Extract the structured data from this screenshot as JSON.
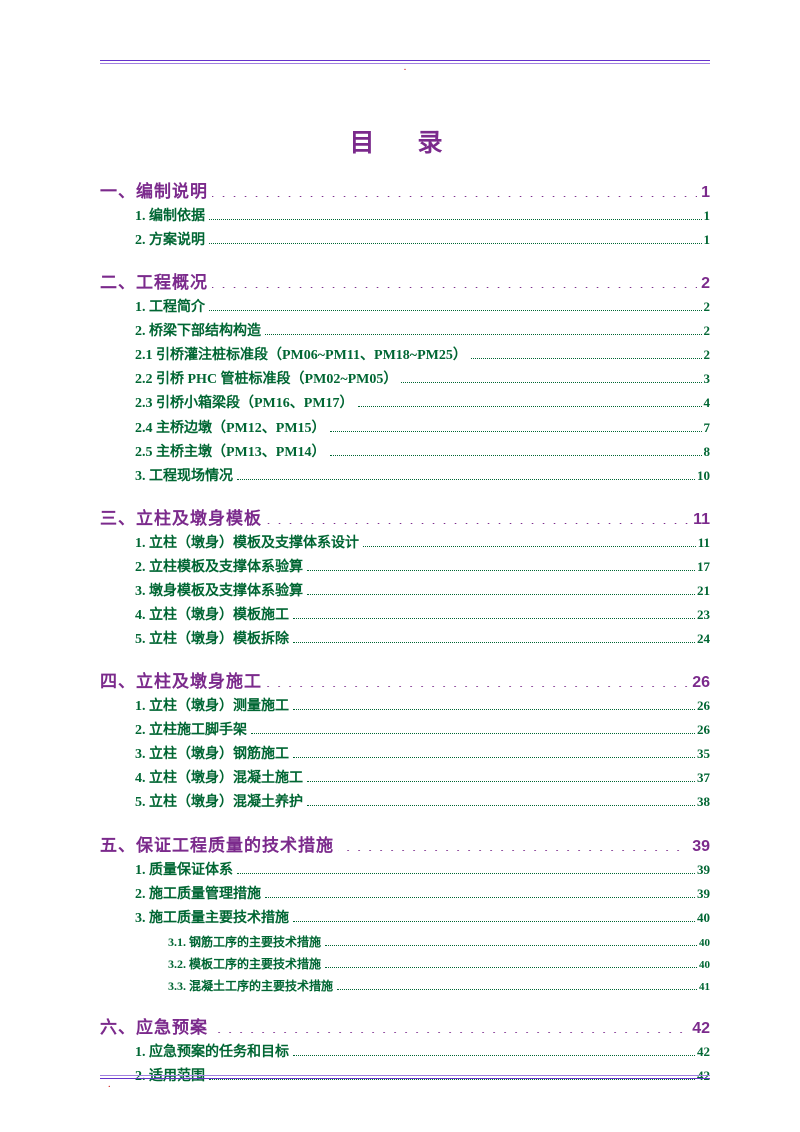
{
  "colors": {
    "title": "#7b2a8c",
    "level1": "#7b2a8c",
    "level2": "#006633",
    "level3": "#006633",
    "rule": "#6633cc",
    "marker": "#c00",
    "background": "#ffffff"
  },
  "typography": {
    "title_fontsize": 25,
    "l1_fontsize": 17,
    "l2_fontsize": 14,
    "l3_fontsize": 12
  },
  "title": "目  录",
  "header_marker": ".",
  "footer_marker": ".",
  "toc": [
    {
      "level": 1,
      "label": "一、编制说明",
      "page": "1"
    },
    {
      "level": 2,
      "label": "1.  编制依据",
      "page": "1"
    },
    {
      "level": 2,
      "label": "2.  方案说明",
      "page": "1"
    },
    {
      "level": 1,
      "label": "二、工程概况",
      "page": "2"
    },
    {
      "level": 2,
      "label": "1.  工程简介",
      "page": "2"
    },
    {
      "level": 2,
      "label": "2.  桥梁下部结构构造",
      "page": "2"
    },
    {
      "level": 2,
      "label": "2.1 引桥灌注桩标准段（PM06~PM11、PM18~PM25）",
      "page": "2"
    },
    {
      "level": 2,
      "label": "2.2 引桥 PHC 管桩标准段（PM02~PM05）",
      "page": "3"
    },
    {
      "level": 2,
      "label": "2.3 引桥小箱梁段（PM16、PM17）",
      "page": "4"
    },
    {
      "level": 2,
      "label": "2.4 主桥边墩（PM12、PM15）",
      "page": "7"
    },
    {
      "level": 2,
      "label": "2.5 主桥主墩（PM13、PM14）",
      "page": "8"
    },
    {
      "level": 2,
      "label": "3.  工程现场情况",
      "page": "10"
    },
    {
      "level": 1,
      "label": "三、立柱及墩身模板",
      "page": "11"
    },
    {
      "level": 2,
      "label": "1.  立柱（墩身）模板及支撑体系设计",
      "page": "11"
    },
    {
      "level": 2,
      "label": "2.  立柱模板及支撑体系验算",
      "page": "17"
    },
    {
      "level": 2,
      "label": "3.  墩身模板及支撑体系验算",
      "page": "21"
    },
    {
      "level": 2,
      "label": "4.  立柱（墩身）模板施工",
      "page": "23"
    },
    {
      "level": 2,
      "label": "5.  立柱（墩身）模板拆除",
      "page": "24"
    },
    {
      "level": 1,
      "label": "四、立柱及墩身施工",
      "page": "26"
    },
    {
      "level": 2,
      "label": "1.  立柱（墩身）测量施工",
      "page": "26"
    },
    {
      "level": 2,
      "label": "2.   立柱施工脚手架",
      "page": "26"
    },
    {
      "level": 2,
      "label": "3.  立柱（墩身）钢筋施工",
      "page": "35"
    },
    {
      "level": 2,
      "label": "4.  立柱（墩身）混凝土施工",
      "page": "37"
    },
    {
      "level": 2,
      "label": "5.  立柱（墩身）混凝土养护",
      "page": "38"
    },
    {
      "level": 1,
      "label": "五、保证工程质量的技术措施",
      "page": "39"
    },
    {
      "level": 2,
      "label": "1.  质量保证体系",
      "page": "39"
    },
    {
      "level": 2,
      "label": "2.  施工质量管理措施",
      "page": "39"
    },
    {
      "level": 2,
      "label": "3.  施工质量主要技术措施",
      "page": "40"
    },
    {
      "level": 3,
      "label": "3.1.  钢筋工序的主要技术措施",
      "page": "40"
    },
    {
      "level": 3,
      "label": "3.2.  模板工序的主要技术措施",
      "page": "40"
    },
    {
      "level": 3,
      "label": "3.3.  混凝土工序的主要技术措施",
      "page": "41"
    },
    {
      "level": 1,
      "label": "六、应急预案",
      "page": "42"
    },
    {
      "level": 2,
      "label": "1.  应急预案的任务和目标",
      "page": "42"
    },
    {
      "level": 2,
      "label": "2.  适用范围",
      "page": "42"
    }
  ]
}
